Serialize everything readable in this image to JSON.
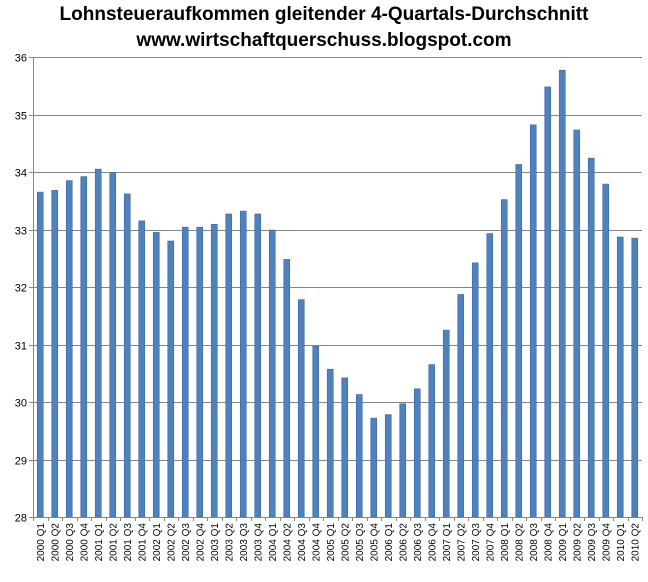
{
  "chart_data": {
    "type": "bar",
    "title": "Lohnsteueraufkommen gleitender 4-Quartals-Durchschnitt",
    "subtitle": "www.wirtschaftquerschuss.blogspot.com",
    "xlabel": "",
    "ylabel": "",
    "ylim": [
      28,
      36
    ],
    "yticks": [
      "28",
      "29",
      "30",
      "31",
      "32",
      "33",
      "34",
      "35",
      "36"
    ],
    "grid": "horizontal",
    "legend": "none",
    "bar_color": "#4f81bd",
    "bar_edge_color": "#3b6aa0",
    "grid_color": "#868686",
    "categories": [
      "2000 Q1",
      "2000 Q2",
      "2000 Q3",
      "2000 Q4",
      "2001 Q1",
      "2001 Q2",
      "2001 Q3",
      "2001 Q4",
      "2002 Q1",
      "2002 Q2",
      "2002 Q3",
      "2002 Q4",
      "2003 Q1",
      "2003 Q2",
      "2003 Q3",
      "2003 Q4",
      "2004 Q1",
      "2004 Q2",
      "2004 Q3",
      "2004 Q4",
      "2005 Q1",
      "2005 Q2",
      "2005 Q3",
      "2005 Q4",
      "2006 Q1",
      "2006 Q2",
      "2006 Q3",
      "2006 Q4",
      "2007 Q1",
      "2007 Q2",
      "2007 Q3",
      "2007 Q4",
      "2008 Q1",
      "2008 Q2",
      "2008 Q3",
      "2008 Q4",
      "2009 Q1",
      "2009 Q2",
      "2009 Q3",
      "2009 Q4",
      "2010 Q1",
      "2010 Q2"
    ],
    "values": [
      33.65,
      33.68,
      33.85,
      33.92,
      34.05,
      33.99,
      33.62,
      33.15,
      32.95,
      32.8,
      33.04,
      33.04,
      33.09,
      33.27,
      33.32,
      33.27,
      32.99,
      32.48,
      31.78,
      30.97,
      30.57,
      30.42,
      30.13,
      29.72,
      29.78,
      29.97,
      30.23,
      30.65,
      31.25,
      31.87,
      32.42,
      32.93,
      33.52,
      34.13,
      34.82,
      35.48,
      35.77,
      34.73,
      34.24,
      33.79,
      32.87,
      32.85
    ]
  }
}
